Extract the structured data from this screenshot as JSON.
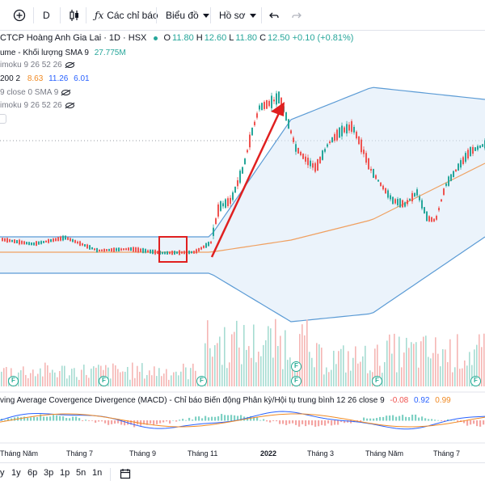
{
  "toolbar": {
    "interval": "D",
    "indicators_label": "Các chỉ báo",
    "chart_label": "Biểu đồ",
    "profile_label": "Hồ sơ"
  },
  "legend": {
    "symbol": "CTCP Hoàng Anh Gia Lai · 1D · HSX",
    "ohlc": [
      {
        "key": "O",
        "value": "11.80"
      },
      {
        "key": "H",
        "value": "12.60"
      },
      {
        "key": "L",
        "value": "11.80"
      },
      {
        "key": "C",
        "value": "12.50"
      }
    ],
    "change": "+0.10 (+0.81%)",
    "volume_label": "ume - Khối lượng SMA 9",
    "volume_value": "27.775M",
    "ichimoku1": "imoku 9 26 52 26",
    "bb_label": "200 2",
    "bb_values": [
      "8.63",
      "11.26",
      "6.01"
    ],
    "sma_label": "9 close 0 SMA 9",
    "ichimoku2": "imoku 9 26 52 26"
  },
  "macd": {
    "label": "ving Average Covergence Divergence (MACD) - Chỉ báo Biến động Phân kỳ/Hội tụ trung bình 12 26 close 9",
    "values": [
      "-0.08",
      "0.92",
      "0.99"
    ]
  },
  "x_axis": [
    "Tháng Năm",
    "Tháng 7",
    "Tháng 9",
    "Tháng 11",
    "2022",
    "Tháng 3",
    "Tháng Năm",
    "Tháng 7"
  ],
  "ranges": [
    "y",
    "1y",
    "6p",
    "3p",
    "1p",
    "5n",
    "1n"
  ],
  "colors": {
    "up": "#26a69a",
    "down": "#ef5350",
    "band": "#5b9bd5",
    "ma": "#f0a060",
    "arrow": "#e02020"
  }
}
